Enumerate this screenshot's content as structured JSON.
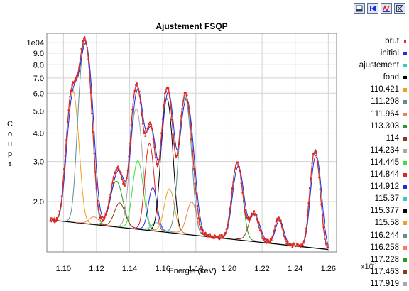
{
  "toolbar": {
    "buttons": [
      {
        "icon": "print-icon"
      },
      {
        "icon": "first-frame-icon"
      },
      {
        "icon": "fit-peaks-icon"
      },
      {
        "icon": "expand-icon"
      }
    ]
  },
  "chart_data": {
    "type": "line",
    "title": "Ajustement FSQP",
    "xlabel": "Energie (keV)",
    "ylabel": "Coups",
    "yscale": "log",
    "xlim": [
      1.09,
      1.265
    ],
    "ylim": [
      1200,
      11000
    ],
    "x_ticks": [
      "1.10",
      "1.12",
      "1.14",
      "1.16",
      "1.18",
      "1.20",
      "1.22",
      "1.24",
      "1.26"
    ],
    "y_ticks": [
      "1e04",
      "9.0",
      "8.0",
      "7.0",
      "6.0",
      "5.0",
      "4.0",
      "3.0",
      "2.0"
    ],
    "y_tick_values": [
      10000,
      9000,
      8000,
      7000,
      6000,
      5000,
      4000,
      3000,
      2000
    ],
    "x_multiplier_label": "x10",
    "x_multiplier_exp": "3",
    "grid": true,
    "legend_position": "right",
    "background": {
      "x": [
        1.092,
        1.26
      ],
      "y": [
        1660,
        1230
      ]
    },
    "peaks": [
      {
        "center": 1.1055,
        "height": 4600,
        "width": 0.003
      },
      {
        "center": 1.113,
        "height": 8600,
        "width": 0.003
      },
      {
        "center": 1.1185,
        "height": 120,
        "width": 0.0028
      },
      {
        "center": 1.132,
        "height": 900,
        "width": 0.0035
      },
      {
        "center": 1.134,
        "height": 420,
        "width": 0.003
      },
      {
        "center": 1.144,
        "height": 3600,
        "width": 0.003
      },
      {
        "center": 1.145,
        "height": 1500,
        "width": 0.0028
      },
      {
        "center": 1.152,
        "height": 2100,
        "width": 0.0024
      },
      {
        "center": 1.154,
        "height": 800,
        "width": 0.0024
      },
      {
        "center": 1.156,
        "height": 120,
        "width": 0.0025
      },
      {
        "center": 1.1625,
        "height": 4200,
        "width": 0.0028
      },
      {
        "center": 1.164,
        "height": 800,
        "width": 0.0028
      },
      {
        "center": 1.1735,
        "height": 4300,
        "width": 0.003
      },
      {
        "center": 1.1775,
        "height": 550,
        "width": 0.0028
      },
      {
        "center": 1.205,
        "height": 1600,
        "width": 0.0028
      },
      {
        "center": 1.215,
        "height": 430,
        "width": 0.0028
      },
      {
        "center": 1.23,
        "height": 380,
        "width": 0.0022
      },
      {
        "center": 1.252,
        "height": 2100,
        "width": 0.0026
      }
    ],
    "series": [
      {
        "name": "brut",
        "color": "#e8221c",
        "style": "points"
      },
      {
        "name": "initial",
        "color": "#1c2de8",
        "style": "line"
      },
      {
        "name": "ajustement",
        "color": "#3cc6c6",
        "style": "line"
      },
      {
        "name": "fond",
        "color": "#000000",
        "style": "line"
      },
      {
        "name": "110.421",
        "color": "#f0a020",
        "style": "line"
      },
      {
        "name": "111.298",
        "color": "#5f8f8f",
        "style": "line"
      },
      {
        "name": "111.964",
        "color": "#f08060",
        "style": "line"
      },
      {
        "name": "113.303",
        "color": "#22a022",
        "style": "line"
      },
      {
        "name": "114",
        "color": "#8a3a1a",
        "style": "line"
      },
      {
        "name": "114.234",
        "color": "#a8a8a8",
        "style": "line"
      },
      {
        "name": "114.445",
        "color": "#40e040",
        "style": "line"
      },
      {
        "name": "114.844",
        "color": "#e82020",
        "style": "line"
      },
      {
        "name": "114.912",
        "color": "#1c2de8",
        "style": "line"
      },
      {
        "name": "115.37",
        "color": "#3cc6c6",
        "style": "line"
      },
      {
        "name": "115.377",
        "color": "#000000",
        "style": "line"
      },
      {
        "name": "115.58",
        "color": "#f0a020",
        "style": "line"
      },
      {
        "name": "116.244",
        "color": "#5f8f8f",
        "style": "line"
      },
      {
        "name": "116.258",
        "color": "#f08060",
        "style": "line"
      },
      {
        "name": "117.228",
        "color": "#22a022",
        "style": "line"
      },
      {
        "name": "117.463",
        "color": "#8a3a1a",
        "style": "line"
      },
      {
        "name": "117.919",
        "color": "#a8a8a8",
        "style": "line"
      }
    ]
  }
}
